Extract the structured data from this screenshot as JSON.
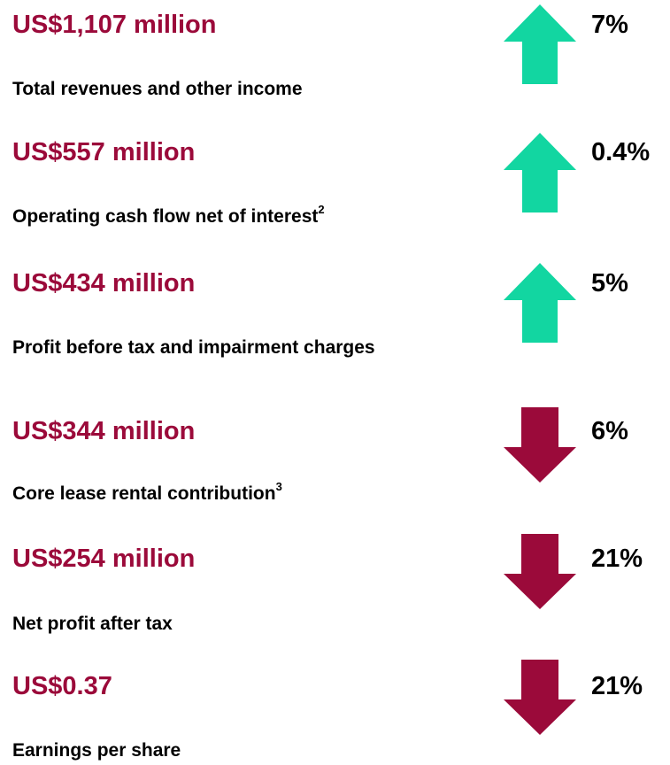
{
  "items": [
    {
      "value": "US$1,107 million",
      "label": "Total revenues and other income",
      "change": "7%",
      "direction": "up"
    },
    {
      "value": "US$557 million",
      "label": "Operating cash flow net of interest",
      "footnote": "2",
      "change": "0.4%",
      "direction": "up"
    },
    {
      "value": "US$434 million",
      "label": "Profit before tax and impairment charges",
      "change": "5%",
      "direction": "up"
    },
    {
      "value": "US$344 million",
      "label": "Core lease rental contribution",
      "footnote": "3",
      "change": "6%",
      "direction": "down"
    },
    {
      "value": "US$254 million",
      "label": "Net profit after tax",
      "change": "21%",
      "direction": "down"
    },
    {
      "value": "US$0.37",
      "label": "Earnings per share",
      "change": "21%",
      "direction": "down"
    }
  ],
  "colors": {
    "value": "#9b0a3a",
    "up": "#12d6a1",
    "down": "#9b0a3a"
  }
}
